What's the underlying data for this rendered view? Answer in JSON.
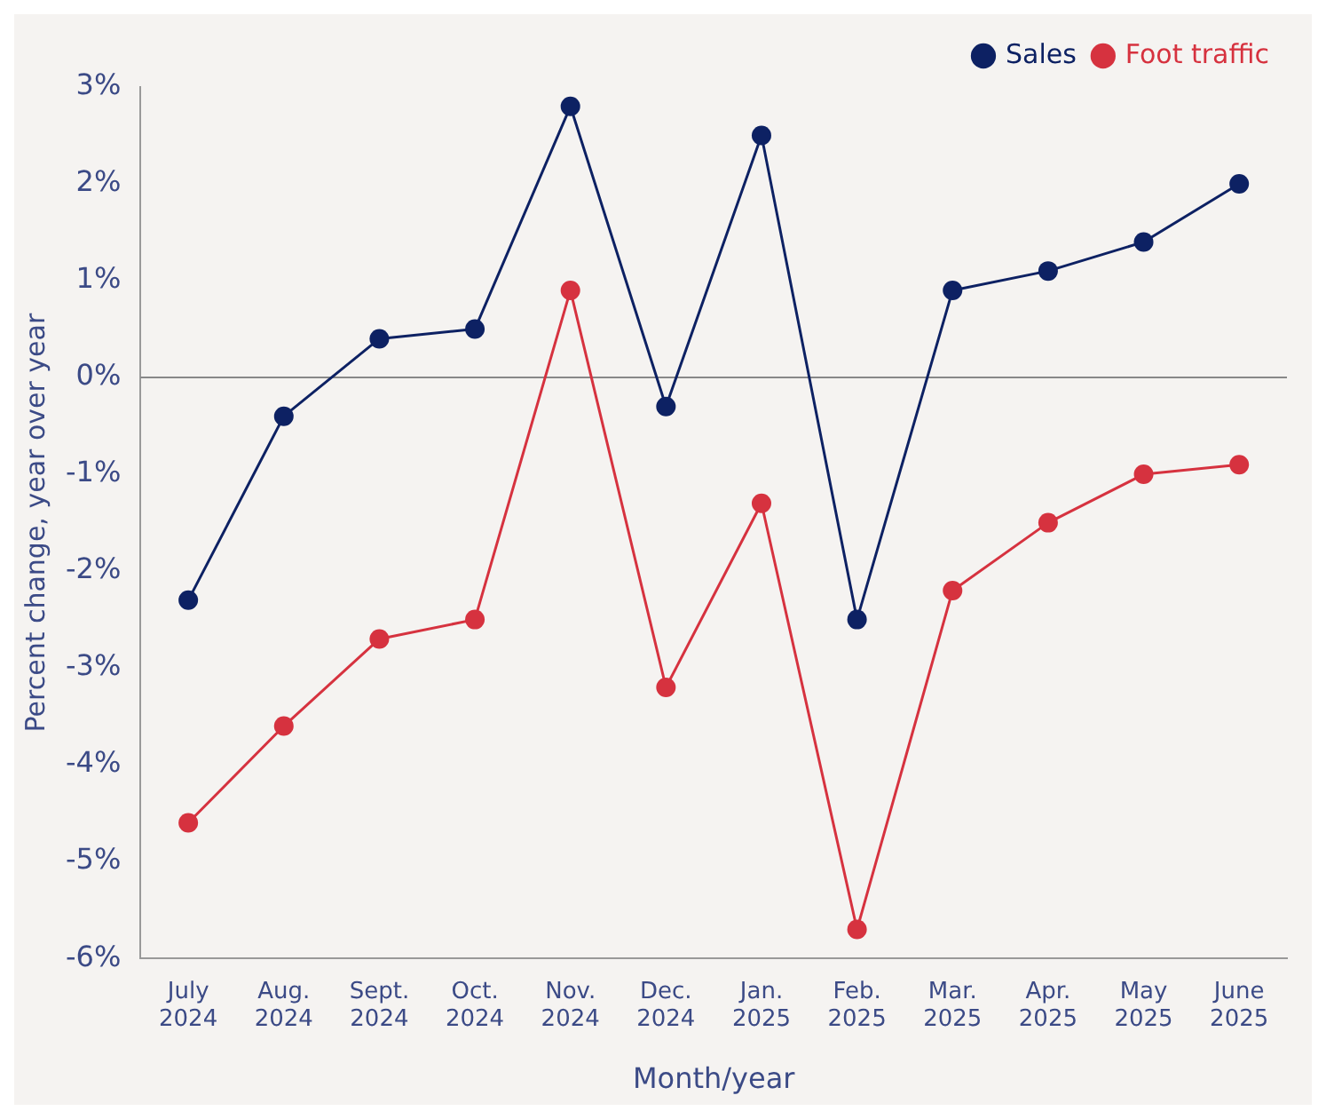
{
  "chart_data": {
    "type": "line",
    "xlabel": "Month/year",
    "ylabel": "Percent change, year over year",
    "categories": [
      "July 2024",
      "Aug. 2024",
      "Sept. 2024",
      "Oct. 2024",
      "Nov. 2024",
      "Dec. 2024",
      "Jan. 2025",
      "Feb. 2025",
      "Mar. 2025",
      "Apr. 2025",
      "May 2025",
      "June 2025"
    ],
    "series": [
      {
        "name": "Sales",
        "color": "#0d2163",
        "values": [
          -2.3,
          -0.4,
          0.4,
          0.5,
          2.8,
          -0.3,
          2.5,
          -2.5,
          0.9,
          1.1,
          1.4,
          2.0
        ]
      },
      {
        "name": "Foot traffic",
        "color": "#d6323f",
        "values": [
          -4.6,
          -3.6,
          -2.7,
          -2.5,
          0.9,
          -3.2,
          -1.3,
          -5.7,
          -2.2,
          -1.5,
          -1.0,
          -0.9
        ]
      }
    ],
    "ylim": [
      -6,
      3
    ],
    "yticks": [
      {
        "value": -6,
        "label": "-6%"
      },
      {
        "value": -5,
        "label": "-5%"
      },
      {
        "value": -4,
        "label": "-4%"
      },
      {
        "value": -3,
        "label": "-3%"
      },
      {
        "value": -2,
        "label": "-2%"
      },
      {
        "value": -1,
        "label": "-1%"
      },
      {
        "value": 0,
        "label": "0%"
      },
      {
        "value": 1,
        "label": "1%"
      },
      {
        "value": 2,
        "label": "2%"
      },
      {
        "value": 3,
        "label": "3%"
      }
    ],
    "ref_lines": [
      {
        "axis": "y",
        "value": 0,
        "color": "#888888"
      }
    ],
    "grid": false,
    "legend": "top right",
    "marker": "circle",
    "line_style": "solid"
  }
}
